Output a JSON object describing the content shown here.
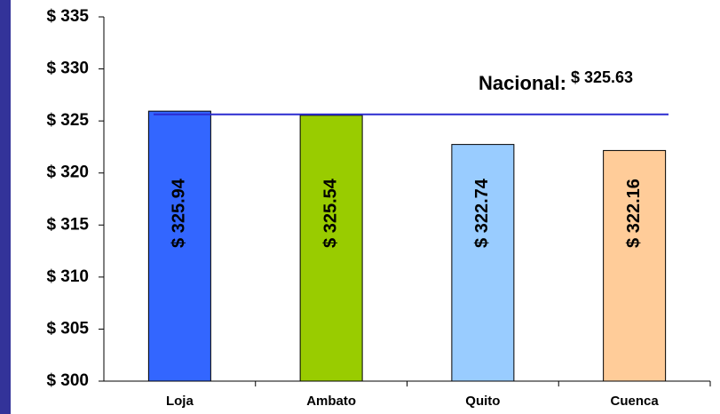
{
  "chart_data": {
    "type": "bar",
    "categories": [
      "Loja",
      "Ambato",
      "Quito",
      "Cuenca"
    ],
    "values": [
      325.94,
      325.54,
      322.74,
      322.16
    ],
    "value_labels": [
      "$ 325.94",
      "$ 325.54",
      "$ 322.74",
      "$ 322.16"
    ],
    "colors": [
      "#3366ff",
      "#99cc00",
      "#99ccff",
      "#ffcc99"
    ],
    "ylim": [
      300,
      335
    ],
    "yticks": [
      {
        "value": 300,
        "label": "$ 300"
      },
      {
        "value": 305,
        "label": "$ 305"
      },
      {
        "value": 310,
        "label": "$ 310"
      },
      {
        "value": 315,
        "label": "$ 315"
      },
      {
        "value": 320,
        "label": "$ 320"
      },
      {
        "value": 325,
        "label": "$ 325"
      },
      {
        "value": 330,
        "label": "$ 330"
      },
      {
        "value": 335,
        "label": "$ 335"
      }
    ],
    "reference_line": {
      "label": "Nacional:",
      "value": 325.63,
      "value_label": "$ 325.63",
      "color": "#2b2bd0"
    }
  }
}
